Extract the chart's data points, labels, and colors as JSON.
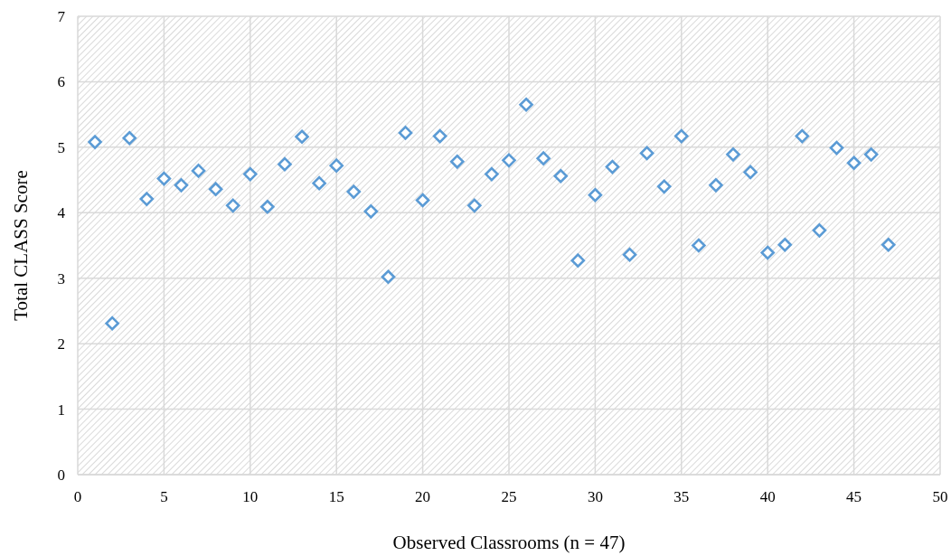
{
  "chart_data": {
    "type": "scatter",
    "xlabel": "Observed Classrooms (n = 47)",
    "ylabel": "Total CLASS Score",
    "x": [
      1,
      2,
      3,
      4,
      5,
      6,
      7,
      8,
      9,
      10,
      11,
      12,
      13,
      14,
      15,
      16,
      17,
      18,
      19,
      20,
      21,
      22,
      23,
      24,
      25,
      26,
      27,
      28,
      29,
      30,
      31,
      32,
      33,
      34,
      35,
      36,
      37,
      38,
      39,
      40,
      41,
      42,
      43,
      44,
      45,
      46,
      47
    ],
    "series": [
      {
        "color": "#5b9bd5",
        "values": [
          5.08,
          2.31,
          5.14,
          4.21,
          4.52,
          4.42,
          4.64,
          4.36,
          4.11,
          4.59,
          4.09,
          4.74,
          5.16,
          4.45,
          4.72,
          4.32,
          4.02,
          3.02,
          5.22,
          4.19,
          5.17,
          4.78,
          4.11,
          4.59,
          4.8,
          5.65,
          4.83,
          4.56,
          3.27,
          4.27,
          4.7,
          3.36,
          4.91,
          4.4,
          5.17,
          3.5,
          4.42,
          4.89,
          4.62,
          3.39,
          3.51,
          5.17,
          3.73,
          4.99,
          4.76,
          4.89,
          3.51
        ]
      }
    ],
    "xlim": [
      0,
      50
    ],
    "xticks": [
      0,
      5,
      10,
      15,
      20,
      25,
      30,
      35,
      40,
      45,
      50
    ],
    "ylim": [
      0,
      7
    ],
    "yticks": [
      0,
      1,
      2,
      3,
      4,
      5,
      6,
      7
    ],
    "grid": true,
    "marker": "diamond"
  }
}
